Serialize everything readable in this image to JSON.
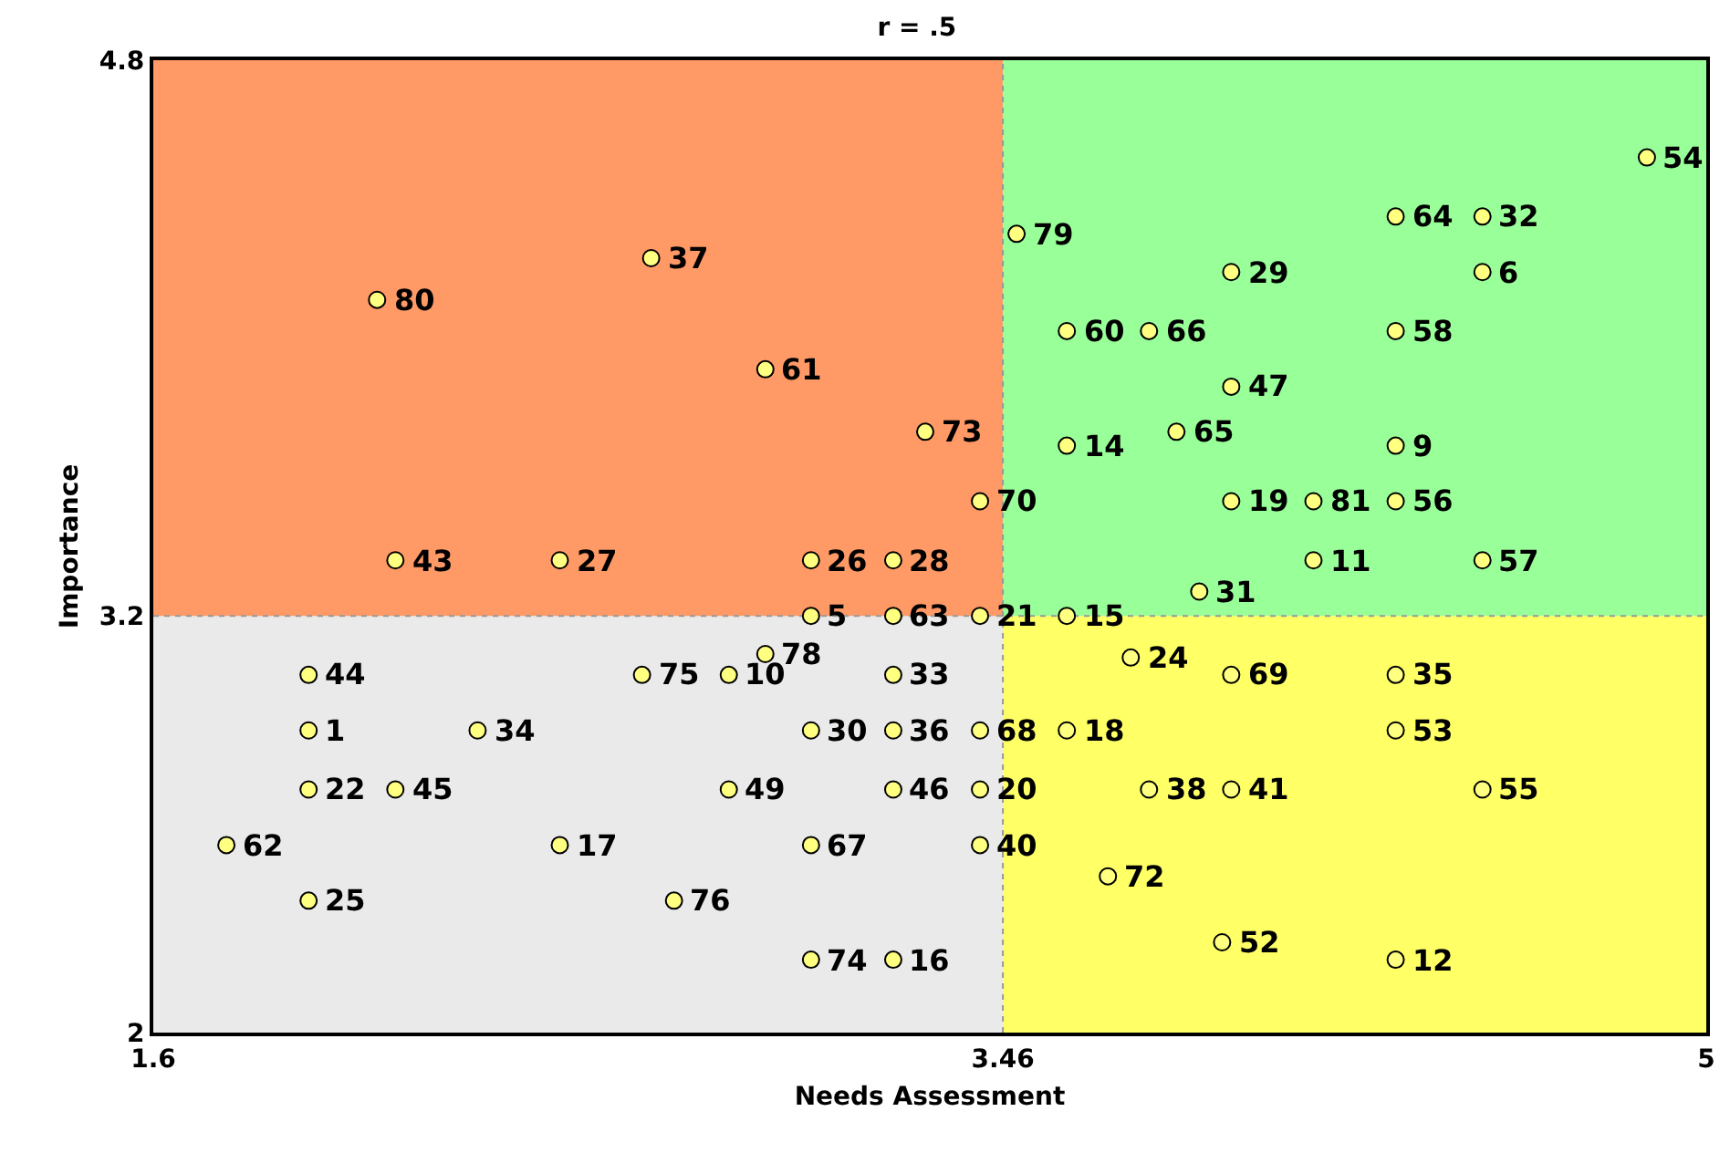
{
  "chart_data": {
    "type": "scatter",
    "title": "r = .5",
    "xlabel": "Needs Assessment",
    "ylabel": "Importance",
    "xlim": [
      1.6,
      5
    ],
    "ylim": [
      2,
      4.8
    ],
    "xticks": [
      1.6,
      3.46,
      5
    ],
    "yticks": [
      2,
      3.2,
      4.8
    ],
    "ref_lines": [
      {
        "axis": "x",
        "value": 3.46,
        "color": "#999999",
        "line_style": "dotted"
      },
      {
        "axis": "y",
        "value": 3.2,
        "color": "#999999",
        "line_style": "dotted"
      }
    ],
    "series": [
      {
        "type": "area",
        "color": "#ff9966",
        "x": [
          1.6,
          3.46
        ],
        "values": [
          4.8,
          4.8
        ]
      },
      {
        "type": "area",
        "color": "#eaeaea",
        "x": [
          1.6,
          3.46
        ],
        "values": [
          3.2,
          3.2
        ]
      },
      {
        "type": "area",
        "color": "#99ff99",
        "x": [
          3.46,
          5
        ],
        "values": [
          4.8,
          4.8
        ]
      },
      {
        "type": "area",
        "color": "#ffff66",
        "x": [
          3.46,
          5
        ],
        "values": [
          3.2,
          3.2
        ]
      },
      {
        "color": "#ffff80",
        "marker": "circle",
        "x": [
          2.09,
          2.69,
          2.94,
          3.49,
          3.6,
          3.78,
          3.29,
          3.6,
          3.84,
          3.41,
          4.87,
          4.32,
          4.51,
          3.96,
          4.51,
          4.32,
          3.96,
          4.32,
          3.96,
          4.14,
          4.32,
          2.13,
          2.49,
          3.04,
          3.22,
          4.14,
          4.51,
          3.89,
          3.04,
          3.22,
          3.41,
          3.6,
          1.94,
          2.67,
          2.86,
          2.94,
          3.22,
          3.74,
          3.96,
          4.32,
          1.94,
          2.31,
          3.04,
          3.22,
          3.41,
          3.6,
          4.32,
          1.94,
          2.13,
          2.86,
          3.22,
          3.41,
          3.78,
          3.96,
          4.51,
          1.76,
          2.49,
          3.04,
          3.41,
          3.69,
          1.94,
          2.74,
          3.04,
          3.22,
          3.94,
          4.32
        ],
        "values": [
          4.11,
          4.23,
          3.91,
          4.3,
          4.02,
          4.02,
          3.73,
          3.69,
          3.73,
          3.53,
          4.52,
          4.35,
          4.35,
          4.19,
          4.19,
          4.02,
          3.86,
          3.69,
          3.53,
          3.53,
          3.53,
          3.36,
          3.36,
          3.36,
          3.36,
          3.36,
          3.36,
          3.27,
          3.2,
          3.2,
          3.2,
          3.2,
          3.03,
          3.03,
          3.03,
          3.09,
          3.03,
          3.08,
          3.03,
          3.03,
          2.87,
          2.87,
          2.87,
          2.87,
          2.87,
          2.87,
          2.87,
          2.7,
          2.7,
          2.7,
          2.7,
          2.7,
          2.7,
          2.7,
          2.7,
          2.54,
          2.54,
          2.54,
          2.54,
          2.45,
          2.38,
          2.38,
          2.21,
          2.21,
          2.26,
          2.21
        ]
      }
    ],
    "annotations": [
      {
        "text": "80",
        "x": 2.09,
        "y": 4.11
      },
      {
        "text": "37",
        "x": 2.69,
        "y": 4.23
      },
      {
        "text": "61",
        "x": 2.94,
        "y": 3.91
      },
      {
        "text": "79",
        "x": 3.49,
        "y": 4.3
      },
      {
        "text": "60",
        "x": 3.6,
        "y": 4.02
      },
      {
        "text": "66",
        "x": 3.78,
        "y": 4.02
      },
      {
        "text": "73",
        "x": 3.29,
        "y": 3.73
      },
      {
        "text": "14",
        "x": 3.6,
        "y": 3.69
      },
      {
        "text": "65",
        "x": 3.84,
        "y": 3.73
      },
      {
        "text": "70",
        "x": 3.41,
        "y": 3.53
      },
      {
        "text": "54",
        "x": 4.87,
        "y": 4.52
      },
      {
        "text": "64",
        "x": 4.32,
        "y": 4.35
      },
      {
        "text": "32",
        "x": 4.51,
        "y": 4.35
      },
      {
        "text": "29",
        "x": 3.96,
        "y": 4.19
      },
      {
        "text": "6",
        "x": 4.51,
        "y": 4.19
      },
      {
        "text": "58",
        "x": 4.32,
        "y": 4.02
      },
      {
        "text": "47",
        "x": 3.96,
        "y": 3.86
      },
      {
        "text": "9",
        "x": 4.32,
        "y": 3.69
      },
      {
        "text": "19",
        "x": 3.96,
        "y": 3.53
      },
      {
        "text": "81",
        "x": 4.14,
        "y": 3.53
      },
      {
        "text": "56",
        "x": 4.32,
        "y": 3.53
      },
      {
        "text": "43",
        "x": 2.13,
        "y": 3.36
      },
      {
        "text": "27",
        "x": 2.49,
        "y": 3.36
      },
      {
        "text": "26",
        "x": 3.04,
        "y": 3.36
      },
      {
        "text": "28",
        "x": 3.22,
        "y": 3.36
      },
      {
        "text": "11",
        "x": 4.14,
        "y": 3.36
      },
      {
        "text": "57",
        "x": 4.51,
        "y": 3.36
      },
      {
        "text": "31",
        "x": 3.89,
        "y": 3.27
      },
      {
        "text": "5",
        "x": 3.04,
        "y": 3.2
      },
      {
        "text": "63",
        "x": 3.22,
        "y": 3.2
      },
      {
        "text": "21",
        "x": 3.41,
        "y": 3.2
      },
      {
        "text": "15",
        "x": 3.6,
        "y": 3.2
      },
      {
        "text": "44",
        "x": 1.94,
        "y": 3.03
      },
      {
        "text": "75",
        "x": 2.67,
        "y": 3.03
      },
      {
        "text": "10",
        "x": 2.86,
        "y": 3.03
      },
      {
        "text": "78",
        "x": 2.94,
        "y": 3.09
      },
      {
        "text": "33",
        "x": 3.22,
        "y": 3.03
      },
      {
        "text": "24",
        "x": 3.74,
        "y": 3.08
      },
      {
        "text": "69",
        "x": 3.96,
        "y": 3.03
      },
      {
        "text": "35",
        "x": 4.32,
        "y": 3.03
      },
      {
        "text": "1",
        "x": 1.94,
        "y": 2.87
      },
      {
        "text": "34",
        "x": 2.31,
        "y": 2.87
      },
      {
        "text": "30",
        "x": 3.04,
        "y": 2.87
      },
      {
        "text": "36",
        "x": 3.22,
        "y": 2.87
      },
      {
        "text": "68",
        "x": 3.41,
        "y": 2.87
      },
      {
        "text": "18",
        "x": 3.6,
        "y": 2.87
      },
      {
        "text": "53",
        "x": 4.32,
        "y": 2.87
      },
      {
        "text": "22",
        "x": 1.94,
        "y": 2.7
      },
      {
        "text": "45",
        "x": 2.13,
        "y": 2.7
      },
      {
        "text": "49",
        "x": 2.86,
        "y": 2.7
      },
      {
        "text": "46",
        "x": 3.22,
        "y": 2.7
      },
      {
        "text": "20",
        "x": 3.41,
        "y": 2.7
      },
      {
        "text": "38",
        "x": 3.78,
        "y": 2.7
      },
      {
        "text": "41",
        "x": 3.96,
        "y": 2.7
      },
      {
        "text": "55",
        "x": 4.51,
        "y": 2.7
      },
      {
        "text": "62",
        "x": 1.76,
        "y": 2.54
      },
      {
        "text": "17",
        "x": 2.49,
        "y": 2.54
      },
      {
        "text": "67",
        "x": 3.04,
        "y": 2.54
      },
      {
        "text": "40",
        "x": 3.41,
        "y": 2.54
      },
      {
        "text": "72",
        "x": 3.69,
        "y": 2.45
      },
      {
        "text": "25",
        "x": 1.94,
        "y": 2.38
      },
      {
        "text": "76",
        "x": 2.74,
        "y": 2.38
      },
      {
        "text": "74",
        "x": 3.04,
        "y": 2.21
      },
      {
        "text": "16",
        "x": 3.22,
        "y": 2.21
      },
      {
        "text": "52",
        "x": 3.94,
        "y": 2.26
      },
      {
        "text": "12",
        "x": 4.32,
        "y": 2.21
      }
    ]
  }
}
